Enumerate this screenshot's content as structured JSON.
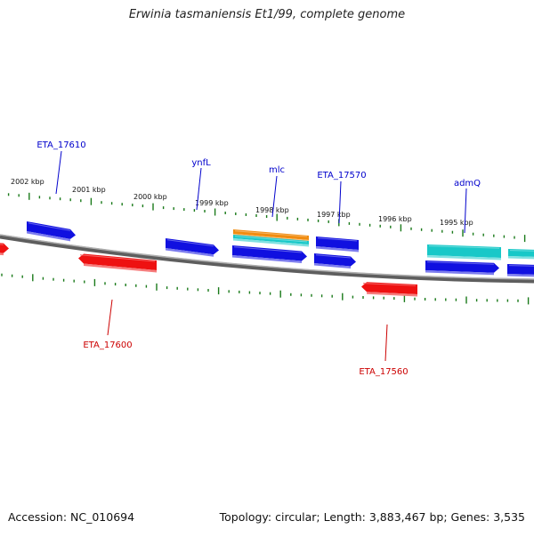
{
  "title": "Erwinia tasmaniensis Et1/99, complete genome",
  "footer": {
    "accession": "Accession: NC_010694",
    "summary": "Topology: circular; Length: 3,883,467 bp; Genes: 3,535"
  },
  "colors": {
    "forward_gene": "#1010e0",
    "reverse_gene": "#ee1111",
    "rna_teal": "#18c8c8",
    "rna_orange": "#f08c10",
    "backbone": "#808080",
    "ticks": "#1a7a1a",
    "label_forward": "#0000cc",
    "label_reverse": "#cc0000"
  },
  "scale_labels": [
    "2002 kbp",
    "2001 kbp",
    "2000 kbp",
    "1999 kbp",
    "1998 kbp",
    "1997 kbp",
    "1996 kbp",
    "1995 kbp"
  ],
  "gene_labels": {
    "forward": [
      "ETA_17610",
      "ynfL",
      "mlc",
      "ETA_17570",
      "admQ"
    ],
    "reverse": [
      "ETA_17600",
      "ETA_17560"
    ]
  }
}
